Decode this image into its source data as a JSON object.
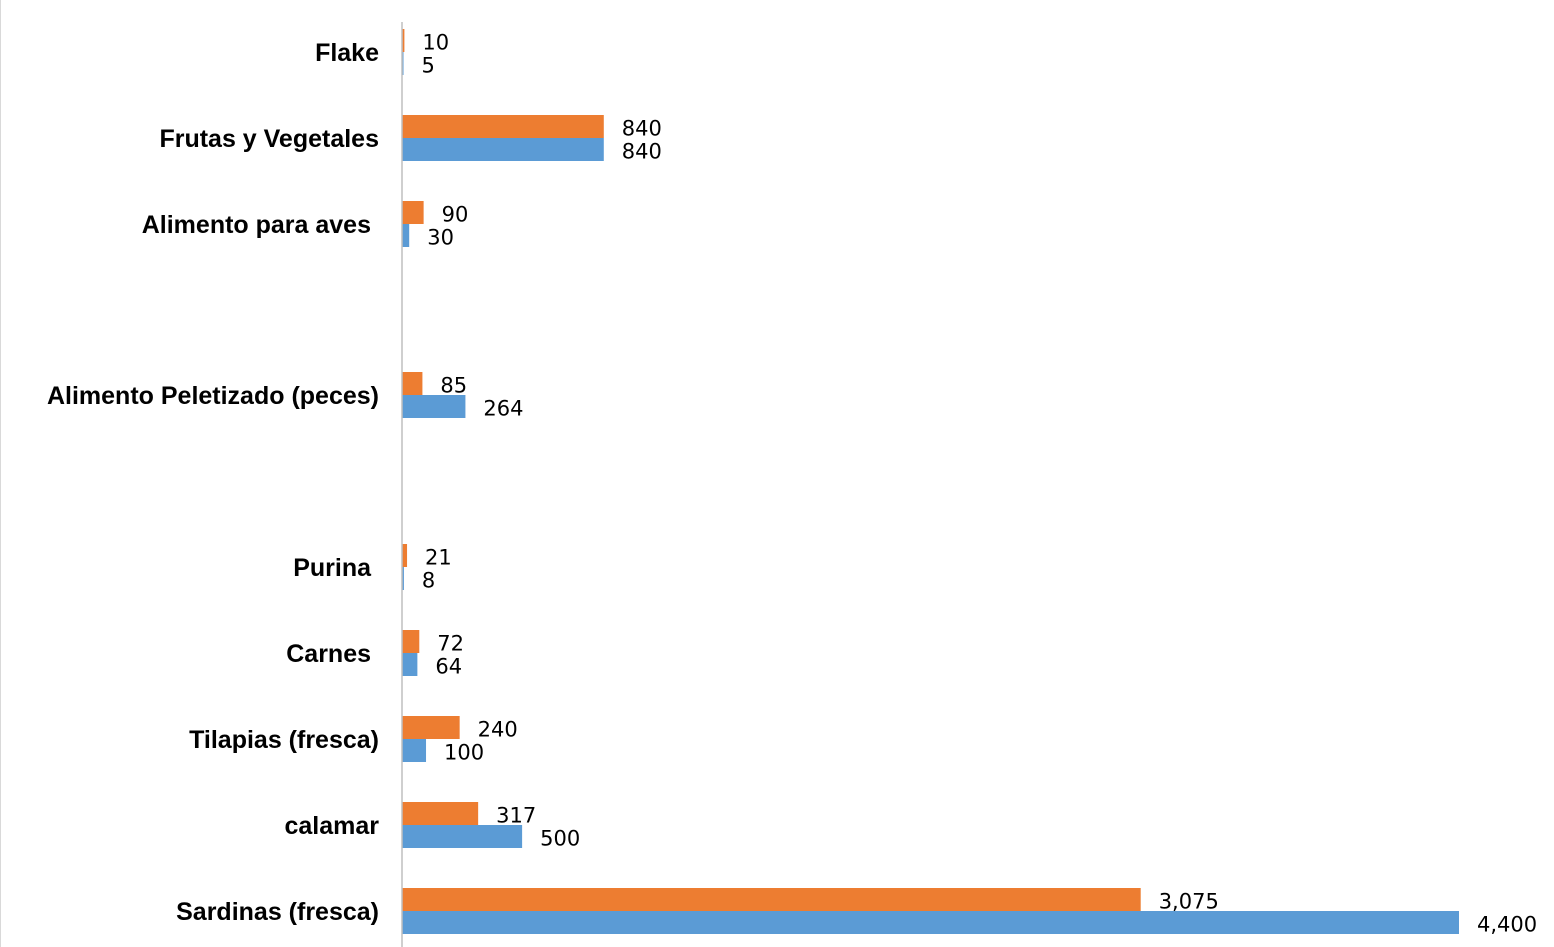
{
  "chart_data": {
    "type": "bar",
    "orientation": "horizontal",
    "title": "",
    "xlabel": "",
    "ylabel": "",
    "categories": [
      "Flake",
      "Frutas y Vegetales",
      "Alimento para aves",
      "Alimento  Peletizado (peces)",
      "Purina",
      "Carnes",
      "Tilapias (fresca)",
      "calamar",
      "Sardinas (fresca)"
    ],
    "series": [
      {
        "color": "#ED7D31",
        "values": [
          10,
          840,
          90,
          85,
          21,
          72,
          240,
          317,
          3075
        ],
        "labels": [
          "10",
          "840",
          "90",
          "85",
          "21",
          "72",
          "240",
          "317",
          "3,075"
        ]
      },
      {
        "color": "#5B9BD5",
        "values": [
          5,
          840,
          30,
          264,
          8,
          64,
          100,
          500,
          4400
        ],
        "labels": [
          "5",
          "840",
          "30",
          "264",
          "8",
          "64",
          "100",
          "500",
          "4,400"
        ]
      }
    ],
    "xlim": [
      0,
      4400
    ],
    "grid": false,
    "legend": "none"
  }
}
